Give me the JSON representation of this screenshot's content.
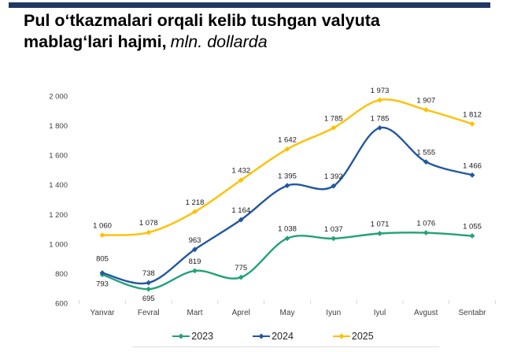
{
  "page": {
    "background": "#ffffff",
    "accent_bar_color": "#1F3864"
  },
  "header": {
    "title_line1": "Pul o‘tkazmalari orqali kelib tushgan valyuta",
    "title_line2_bold": "mablag‘lari hajmi,",
    "title_line2_italic": "mln. dollarda"
  },
  "chart_data": {
    "type": "line",
    "title": "Pul o‘tkazmalari orqali kelib tushgan valyuta mablag‘lari hajmi, mln. dollarda",
    "categories": [
      "Yanvar",
      "Fevral",
      "Mart",
      "Aprel",
      "May",
      "Iyun",
      "Iyul",
      "Avgust",
      "Sentabr"
    ],
    "series": [
      {
        "name": "2023",
        "color": "#21A179",
        "values": [
          793,
          695,
          819,
          775,
          1038,
          1037,
          1071,
          1076,
          1055
        ],
        "labels_below": [
          0,
          1
        ],
        "label_dy": {}
      },
      {
        "name": "2024",
        "color": "#2257A0",
        "values": [
          805,
          738,
          963,
          1164,
          1395,
          1392,
          1785,
          1555,
          1466
        ],
        "labels_below": [],
        "label_dy": {
          "0": -15
        }
      },
      {
        "name": "2025",
        "color": "#FFC000",
        "values": [
          1060,
          1078,
          1218,
          1432,
          1642,
          1785,
          1973,
          1907,
          1812
        ],
        "labels_below": [],
        "label_dy": {}
      }
    ],
    "ylim": [
      600,
      2000
    ],
    "ytick_step": 200,
    "ytick_labels": [
      "600",
      "800",
      "1 000",
      "1 200",
      "1 400",
      "1 600",
      "1 800",
      "2 000"
    ],
    "xlabel": "",
    "ylabel": "",
    "grid": false,
    "smooth": true,
    "marker": "diamond",
    "data_labels": true,
    "number_format": "space-thousands",
    "legend_position": "bottom",
    "axis_label_color": "#404040",
    "data_label_color": "#1a1a1a"
  }
}
